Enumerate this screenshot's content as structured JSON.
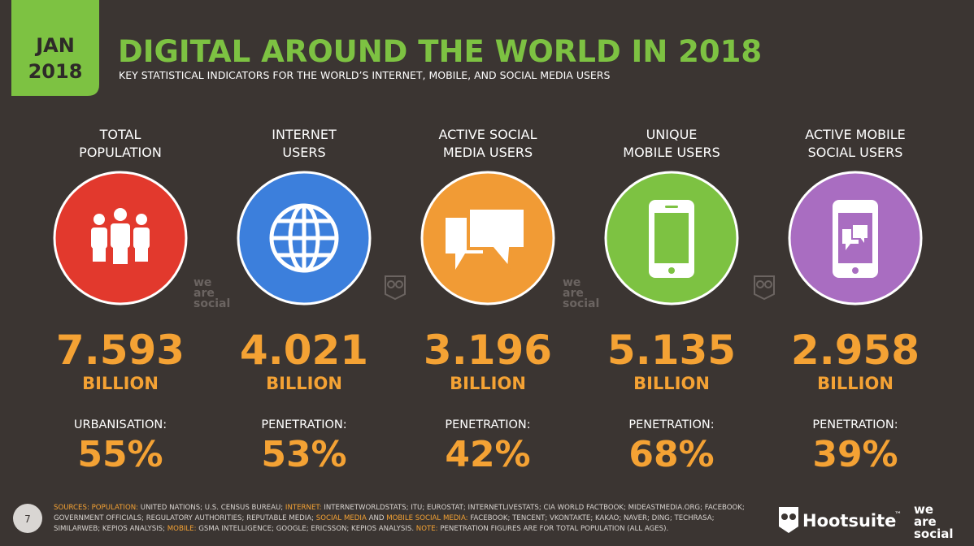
{
  "badge": {
    "month": "JAN",
    "year": "2018"
  },
  "header": {
    "title": "DIGITAL AROUND THE WORLD IN 2018",
    "subtitle": "KEY STATISTICAL INDICATORS FOR THE WORLD’S INTERNET, MOBILE, AND SOCIAL MEDIA USERS"
  },
  "columns": [
    {
      "label_lines": [
        "TOTAL",
        "POPULATION"
      ],
      "value": "7.593",
      "unit": "BILLION",
      "metric_label": "URBANISATION:",
      "metric_value": "55%",
      "color": "#e2392d"
    },
    {
      "label_lines": [
        "INTERNET",
        "USERS"
      ],
      "value": "4.021",
      "unit": "BILLION",
      "metric_label": "PENETRATION:",
      "metric_value": "53%",
      "color": "#3c7fdc"
    },
    {
      "label_lines": [
        "ACTIVE SOCIAL",
        "MEDIA USERS"
      ],
      "value": "3.196",
      "unit": "BILLION",
      "metric_label": "PENETRATION:",
      "metric_value": "42%",
      "color": "#f19b35"
    },
    {
      "label_lines": [
        "UNIQUE",
        "MOBILE USERS"
      ],
      "value": "5.135",
      "unit": "BILLION",
      "metric_label": "PENETRATION:",
      "metric_value": "68%",
      "color": "#7dc242"
    },
    {
      "label_lines": [
        "ACTIVE MOBILE",
        "SOCIAL USERS"
      ],
      "value": "2.958",
      "unit": "BILLION",
      "metric_label": "PENETRATION:",
      "metric_value": "39%",
      "color": "#a96dc1"
    }
  ],
  "watermark": {
    "lines": [
      "we",
      "are",
      "social"
    ]
  },
  "footer": {
    "page": "7",
    "sources": [
      {
        "text": "SOURCES: POPULATION:",
        "color": "#f4a234"
      },
      {
        "text": "UNITED NATIONS; U.S. CENSUS BUREAU;",
        "color": "#d8d4d0"
      },
      {
        "text": "INTERNET:",
        "color": "#f4a234"
      },
      {
        "text": "INTERNETWORLDSTATS; ITU; EUROSTAT; INTERNETLIVESTATS; CIA WORLD FACTBOOK; MIDEASTMEDIA.ORG; FACEBOOK; GOVERNMENT OFFICIALS; REGULATORY AUTHORITIES; REPUTABLE MEDIA;",
        "color": "#d8d4d0"
      },
      {
        "text": "SOCIAL MEDIA",
        "color": "#f4a234"
      },
      {
        "text": "AND",
        "color": "#d8d4d0"
      },
      {
        "text": "MOBILE SOCIAL MEDIA:",
        "color": "#f4a234"
      },
      {
        "text": "FACEBOOK; TENCENT; VKONTAKTE; KAKAO; NAVER; DING; TECHRASA; SIMILARWEB; KEPIOS ANALYSIS;",
        "color": "#d8d4d0"
      },
      {
        "text": "MOBILE:",
        "color": "#f4a234"
      },
      {
        "text": "GSMA INTELLIGENCE; GOOGLE; ERICSSON; KEPIOS ANALYSIS.",
        "color": "#d8d4d0"
      },
      {
        "text": "NOTE:",
        "color": "#f4a234"
      },
      {
        "text": "PENETRATION FIGURES ARE FOR TOTAL POPULATION (ALL AGES).",
        "color": "#d8d4d0"
      }
    ],
    "brand": "Hootsuite",
    "trademark": "™",
    "partner_lines": [
      "we",
      "are",
      "social"
    ]
  }
}
